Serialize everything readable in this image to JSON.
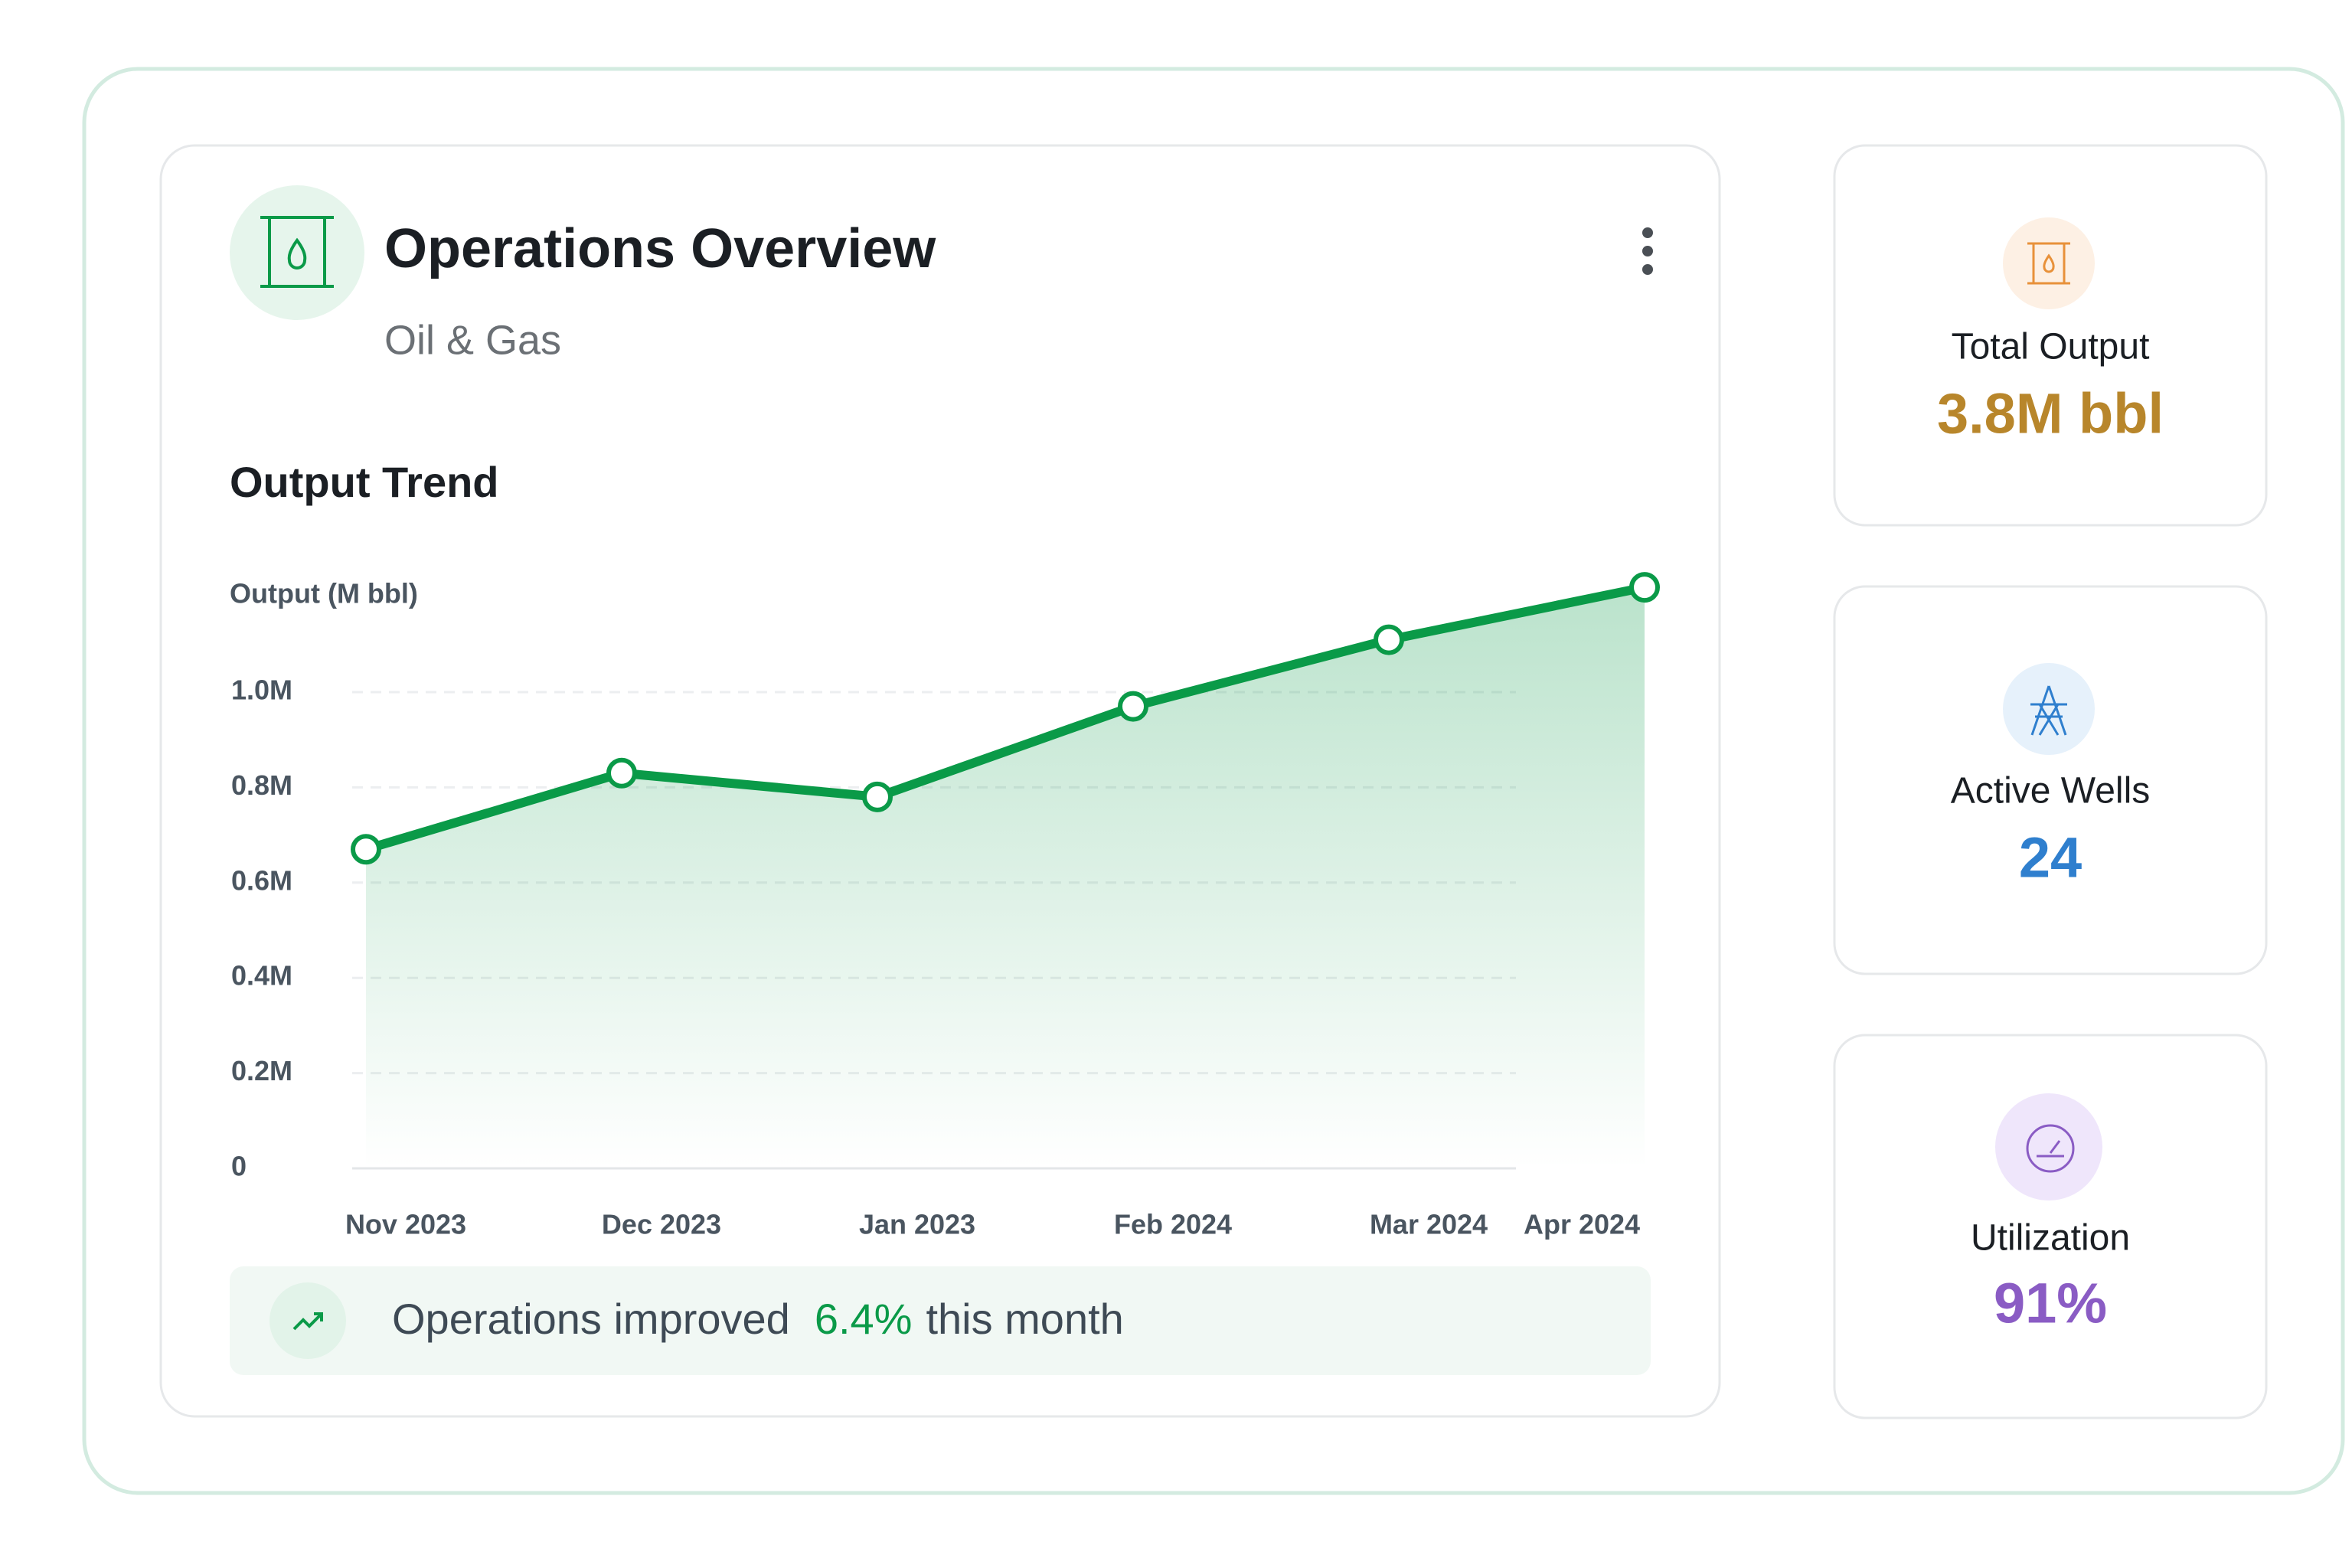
{
  "header": {
    "title": "Operations Overview",
    "subtitle": "Oil & Gas"
  },
  "chart_data": {
    "type": "line",
    "title": "Output Trend",
    "y_label": "Output (M bbl)",
    "categories": [
      "Nov 2023",
      "Dec 2023",
      "Jan 2023",
      "Feb 2024",
      "Mar 2024",
      "Apr 2024"
    ],
    "values": [
      0.67,
      0.83,
      0.78,
      0.97,
      1.11,
      1.22
    ],
    "color": "#0a9a48",
    "ylim": [
      0,
      1.25
    ],
    "yticks": [
      0,
      {
        "value": 0.2,
        "label": "0.2M"
      },
      {
        "value": 0.4,
        "label": "0.4M"
      },
      {
        "value": 0.6,
        "label": "0.6M"
      },
      {
        "value": 0.8,
        "label": "0.8M"
      },
      {
        "value": 1.0,
        "label": "1.0M"
      }
    ],
    "grid": true
  },
  "footer": {
    "text_before": "Operations improved",
    "highlight": "6.4%",
    "text_after": "this month"
  },
  "stats": [
    {
      "label": "Total Output",
      "value": "3.8M bbl",
      "color": "#b8862b"
    },
    {
      "label": "Active Wells",
      "value": "24",
      "color": "#2f7fce"
    },
    {
      "label": "Utilization",
      "value": "91%",
      "color": "#8a5cc4"
    }
  ]
}
